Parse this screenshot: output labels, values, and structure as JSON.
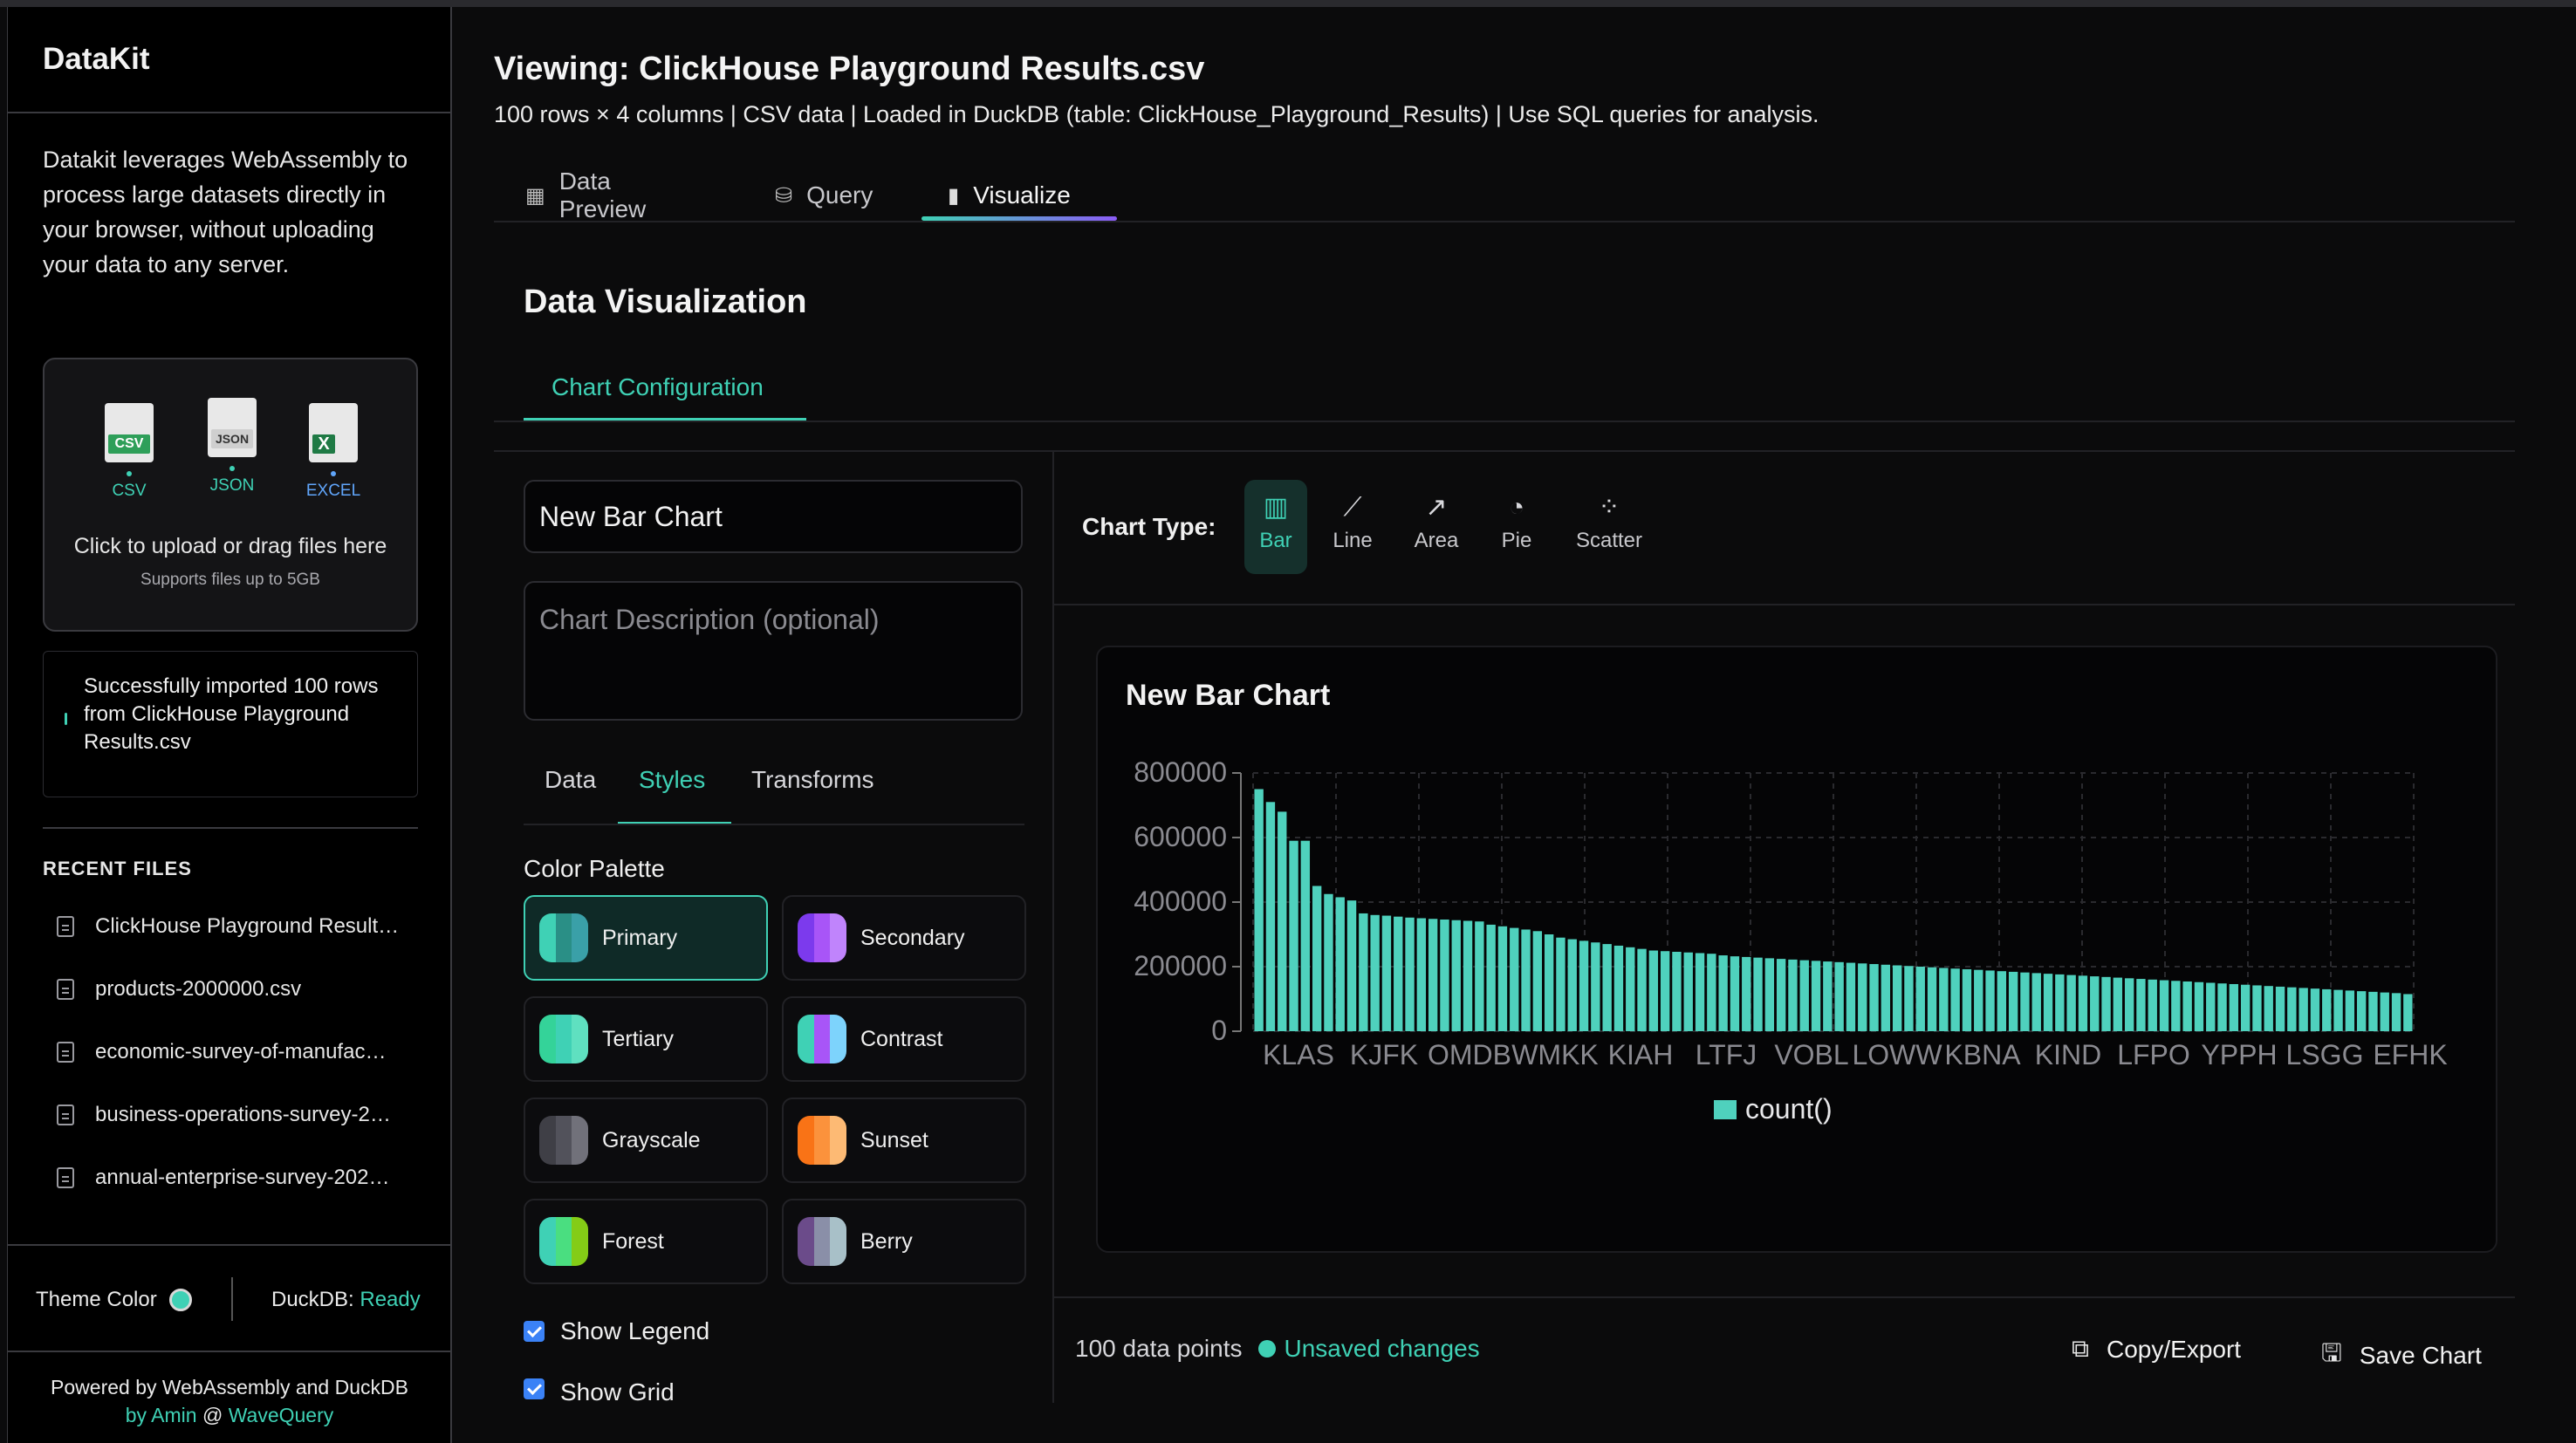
{
  "sidebar": {
    "brand": "DataKit",
    "intro": "Datakit leverages WebAssembly to process large datasets directly in your browser, without uploading your data to any server.",
    "upload": {
      "types": [
        {
          "tag": "CSV",
          "label": "CSV",
          "color": "#2e9f59"
        },
        {
          "tag": "JSON",
          "label": "JSON",
          "color": "#555555"
        },
        {
          "tag": "X",
          "label": "EXCEL",
          "color": "#1f7a45"
        }
      ],
      "main": "Click to upload or drag files here",
      "sub": "Supports files up to 5GB"
    },
    "toast": "Successfully imported 100 rows from ClickHouse Playground Results.csv",
    "recent_heading": "RECENT FILES",
    "recent_files": [
      "ClickHouse Playground Result…",
      "products-2000000.csv",
      "economic-survey-of-manufac…",
      "business-operations-survey-2…",
      "annual-enterprise-survey-202…"
    ],
    "theme_label": "Theme Color",
    "duckdb_label": "DuckDB:",
    "duckdb_status": "Ready",
    "powered_1": "Powered by WebAssembly and DuckDB",
    "powered_by": "by",
    "powered_author": "Amin",
    "powered_at": "@",
    "powered_org": "WaveQuery"
  },
  "header": {
    "title": "Viewing: ClickHouse Playground Results.csv",
    "subtitle": "100 rows × 4 columns | CSV data | Loaded in DuckDB (table: ClickHouse_Playground_Results) | Use SQL queries for analysis."
  },
  "tabs": [
    {
      "label": "Data Preview",
      "icon": "table-icon"
    },
    {
      "label": "Query",
      "icon": "database-icon"
    },
    {
      "label": "Visualize",
      "icon": "bar-chart-icon",
      "active": true
    }
  ],
  "viz": {
    "title": "Data Visualization",
    "config_tab": "Chart Configuration",
    "chart_name": "New Bar Chart",
    "description_placeholder": "Chart Description (optional)",
    "subtabs": [
      "Data",
      "Styles",
      "Transforms"
    ],
    "active_subtab": "Styles",
    "palette_heading": "Color Palette",
    "palettes": [
      {
        "name": "Primary",
        "colors": [
          "#3fd1b5",
          "#2a8f86",
          "#3aa0a8"
        ],
        "selected": true
      },
      {
        "name": "Secondary",
        "colors": [
          "#7c3aed",
          "#a855f7",
          "#c084fc"
        ]
      },
      {
        "name": "Tertiary",
        "colors": [
          "#34d399",
          "#3fd1b5",
          "#5fe0c0"
        ]
      },
      {
        "name": "Contrast",
        "colors": [
          "#3fd1b5",
          "#a855f7",
          "#7dd3fc"
        ]
      },
      {
        "name": "Grayscale",
        "colors": [
          "#3f3f46",
          "#52525b",
          "#71717a"
        ]
      },
      {
        "name": "Sunset",
        "colors": [
          "#f97316",
          "#fb923c",
          "#fdba74"
        ]
      },
      {
        "name": "Forest",
        "colors": [
          "#3fd1b5",
          "#4ade80",
          "#84cc16"
        ]
      },
      {
        "name": "Berry",
        "colors": [
          "#6b4b8a",
          "#8a8fa8",
          "#a8c0c8"
        ]
      }
    ],
    "show_legend": "Show Legend",
    "show_grid": "Show Grid",
    "chart_type_label": "Chart Type:",
    "chart_types": [
      {
        "label": "Bar",
        "icon": "bar-chart-icon",
        "active": true
      },
      {
        "label": "Line",
        "icon": "line-chart-icon"
      },
      {
        "label": "Area",
        "icon": "area-chart-icon"
      },
      {
        "label": "Pie",
        "icon": "pie-chart-icon"
      },
      {
        "label": "Scatter",
        "icon": "scatter-chart-icon"
      }
    ],
    "data_points": "100 data points",
    "unsaved": "Unsaved changes",
    "copy_export": "Copy/Export",
    "save_chart": "Save Chart"
  },
  "chart_data": {
    "type": "bar",
    "title": "New Bar Chart",
    "ylim": [
      0,
      800000
    ],
    "yticks": [
      0,
      200000,
      400000,
      600000,
      800000
    ],
    "xtick_labels": [
      "KLAS",
      "KJFK",
      "OMDB",
      "WMKK",
      "KIAH",
      "LTFJ",
      "VOBL",
      "LOWW",
      "KBNA",
      "KIND",
      "LFPO",
      "YPPH",
      "LSGG",
      "EFHK"
    ],
    "legend": "count()",
    "legend_position": "bottom",
    "grid": true,
    "bar_color": "#4fd1bd",
    "values": [
      750000,
      710000,
      680000,
      590000,
      590000,
      450000,
      425000,
      415000,
      405000,
      365000,
      360000,
      358000,
      355000,
      352000,
      350000,
      348000,
      346000,
      344000,
      342000,
      340000,
      330000,
      325000,
      320000,
      315000,
      310000,
      300000,
      290000,
      285000,
      280000,
      275000,
      270000,
      265000,
      260000,
      255000,
      250000,
      248000,
      246000,
      244000,
      242000,
      240000,
      235000,
      232000,
      230000,
      228000,
      226000,
      224000,
      222000,
      220000,
      218000,
      216000,
      214000,
      212000,
      210000,
      208000,
      206000,
      204000,
      202000,
      200000,
      198000,
      196000,
      194000,
      192000,
      190000,
      188000,
      186000,
      184000,
      182000,
      180000,
      178000,
      176000,
      174000,
      172000,
      170000,
      168000,
      166000,
      164000,
      162000,
      160000,
      158000,
      156000,
      154000,
      152000,
      150000,
      148000,
      146000,
      144000,
      142000,
      140000,
      138000,
      136000,
      134000,
      132000,
      130000,
      128000,
      126000,
      124000,
      122000,
      120000,
      118000,
      115000
    ]
  }
}
